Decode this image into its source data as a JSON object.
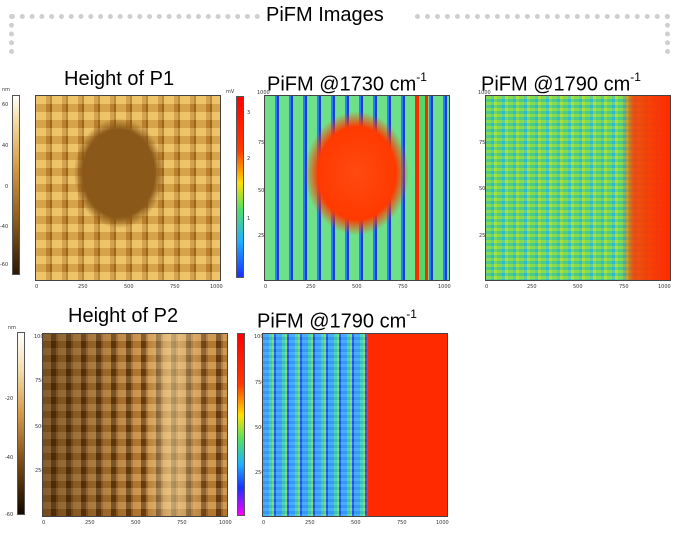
{
  "header": {
    "title": "PiFM Images"
  },
  "panels": {
    "p1_height": {
      "title": "Height of P1",
      "unit": "nm",
      "cbar_ticks": [
        "60",
        "40",
        "0",
        "-40",
        "-60"
      ]
    },
    "p1_pifm_1730": {
      "title_main": "PiFM @1730 cm",
      "title_sup": "-1",
      "unit": "mV",
      "cbar_ticks": [
        "3",
        "2",
        "1"
      ]
    },
    "p1_pifm_1790": {
      "title_main": "PiFM @1790 cm",
      "title_sup": "-1"
    },
    "p2_height": {
      "title": "Height of P2",
      "unit": "nm",
      "cbar_ticks": [
        "-20",
        "-40",
        "-60"
      ]
    },
    "p2_pifm_1790": {
      "title_main": "PiFM @1790 cm",
      "title_sup": "-1"
    }
  },
  "axes": {
    "x_ticks": [
      "0",
      "250",
      "500",
      "750",
      "1000"
    ],
    "y_ticks": [
      "1000",
      "750",
      "500",
      "250",
      "0"
    ],
    "unit": "nm"
  },
  "colors": {
    "height_light": "#f0c66a",
    "height_dark": "#5a3a0e",
    "pifm_red": "#ff2a00",
    "pifm_green": "#4cd96a",
    "pifm_blue": "#2a7dff"
  }
}
